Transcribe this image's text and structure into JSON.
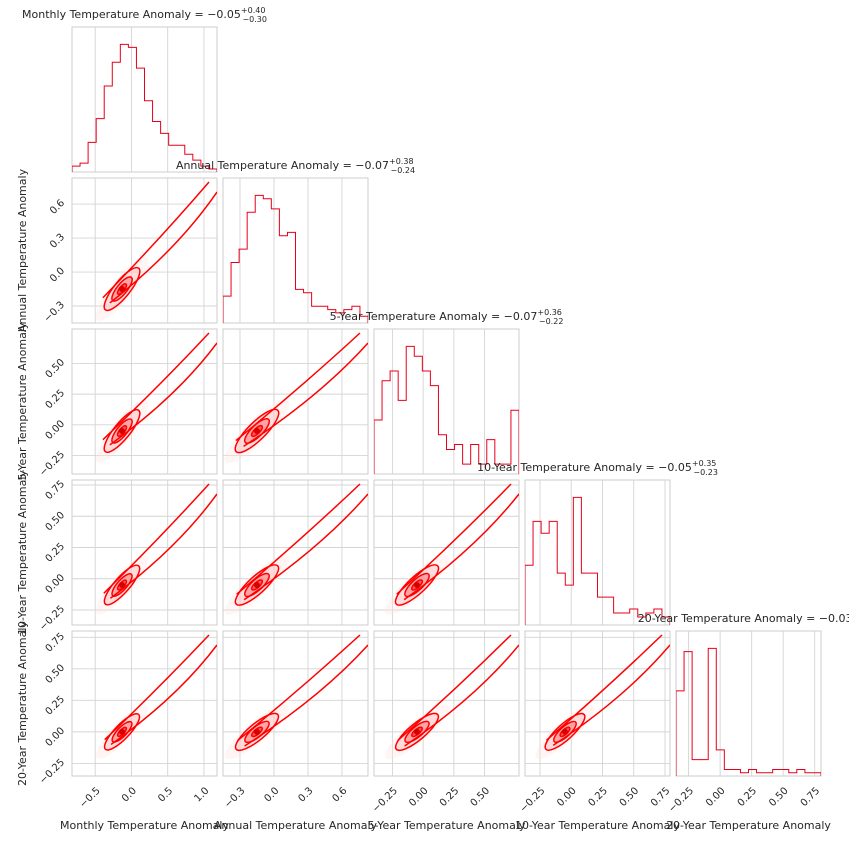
{
  "chart_data": {
    "type": "corner",
    "color": "#ff0000",
    "variables": [
      {
        "name": "Monthly Temperature Anomaly",
        "title_prefix": "Monthly Temperature Anomaly = −0.05",
        "sup": "+0.40",
        "sub": "−0.30",
        "range": [
          -0.82,
          1.18
        ],
        "ticks": [
          -0.5,
          0.0,
          0.5,
          1.0
        ],
        "tick_labels": [
          "−0.5",
          "0.0",
          "0.5",
          "1.0"
        ],
        "hist": [
          2,
          3,
          10,
          18,
          29,
          37,
          43,
          42,
          35,
          24,
          17,
          13,
          9,
          9,
          6,
          4,
          2,
          1
        ]
      },
      {
        "name": "Annual Temperature Anomaly",
        "title_prefix": "Annual Temperature Anomaly = −0.07",
        "sup": "+0.38",
        "sub": "−0.24",
        "range": [
          -0.45,
          0.83
        ],
        "ticks": [
          -0.3,
          0.0,
          0.3,
          0.6
        ],
        "tick_labels": [
          "−0.3",
          "0.0",
          "0.3",
          "0.6"
        ],
        "hist": [
          8,
          18,
          22,
          33,
          38,
          37,
          34,
          26,
          27,
          10,
          9,
          5,
          5,
          4,
          3,
          4,
          5,
          2
        ]
      },
      {
        "name": "5-Year Temperature Anomaly",
        "title_prefix": "5-Year Temperature Anomaly = −0.07",
        "sup": "+0.36",
        "sub": "−0.22",
        "range": [
          -0.4,
          0.78
        ],
        "ticks": [
          -0.25,
          0.0,
          0.25,
          0.5
        ],
        "tick_labels": [
          "−0.25",
          "0.00",
          "0.25",
          "0.50"
        ],
        "hist": [
          11,
          19,
          21,
          15,
          26,
          24,
          21,
          18,
          8,
          5,
          6,
          2,
          6,
          2,
          7,
          2,
          2,
          13
        ]
      },
      {
        "name": "10-Year Temperature Anomaly",
        "title_prefix": "10-Year Temperature Anomaly = −0.05",
        "sup": "+0.35",
        "sub": "−0.23",
        "range": [
          -0.37,
          0.79
        ],
        "ticks": [
          -0.25,
          0.0,
          0.25,
          0.5,
          0.75
        ],
        "tick_labels": [
          "−0.25",
          "0.00",
          "0.25",
          "0.50",
          "0.75"
        ],
        "hist": [
          15,
          26,
          23,
          26,
          13,
          10,
          32,
          13,
          13,
          7,
          7,
          3,
          3,
          4,
          2,
          3,
          4,
          2
        ]
      },
      {
        "name": "20-Year Temperature Anomaly",
        "title_prefix": "20-Year Temperature Anomaly = −0.03",
        "sup": "+",
        "sub": "",
        "range": [
          -0.35,
          0.8
        ],
        "ticks": [
          -0.25,
          0.0,
          0.25,
          0.5,
          0.75
        ],
        "tick_labels": [
          "−0.25",
          "0.00",
          "0.25",
          "0.50",
          "0.75"
        ],
        "hist": [
          26,
          38,
          5,
          5,
          39,
          8,
          2,
          2,
          1,
          2,
          1,
          1,
          2,
          2,
          1,
          2,
          1,
          1
        ]
      }
    ],
    "modes": [
      -0.13,
      -0.15,
      -0.05,
      -0.05,
      0.0
    ],
    "spreads": [
      0.3,
      0.24,
      0.22,
      0.2,
      0.18
    ],
    "grid": true,
    "legend": "none"
  }
}
